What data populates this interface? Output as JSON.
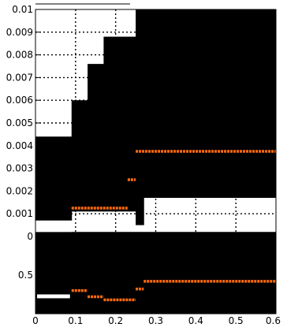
{
  "chart_data": [
    {
      "type": "line",
      "panel": "top",
      "title": "",
      "xlabel": "",
      "ylabel": "",
      "xlim": [
        0,
        0.6
      ],
      "ylim": [
        0,
        0.01
      ],
      "grid": true,
      "ytick_labels": [
        "0",
        "0.001",
        "0.002",
        "0.003",
        "0.004",
        "0.005",
        "0.006",
        "0.007",
        "0.008",
        "0.009",
        "0.01"
      ],
      "yticks": [
        0,
        0.001,
        0.002,
        0.003,
        0.004,
        0.005,
        0.006,
        0.007,
        0.008,
        0.009,
        0.01
      ],
      "xticks": [
        0,
        0.1,
        0.2,
        0.3,
        0.4,
        0.5,
        0.6
      ],
      "black_band": {
        "steps": [
          {
            "x0": 0.0,
            "x1": 0.09,
            "lower": 0.0007,
            "upper": 0.0044
          },
          {
            "x0": 0.09,
            "x1": 0.13,
            "lower": 0.0011,
            "upper": 0.006
          },
          {
            "x0": 0.13,
            "x1": 0.17,
            "lower": 0.0011,
            "upper": 0.0076
          },
          {
            "x0": 0.17,
            "x1": 0.25,
            "lower": 0.0011,
            "upper": 0.0088
          },
          {
            "x0": 0.25,
            "x1": 0.27,
            "lower": 0.0005,
            "upper": 0.01
          },
          {
            "x0": 0.27,
            "x1": 0.6,
            "lower": 0.0017,
            "upper": 0.01
          }
        ]
      },
      "orange_series": [
        {
          "x0": 0.09,
          "x1": 0.23,
          "y": 0.00125
        },
        {
          "x0": 0.23,
          "x1": 0.25,
          "y": 0.0025
        },
        {
          "x0": 0.25,
          "x1": 0.6,
          "y": 0.00375
        }
      ]
    },
    {
      "type": "line",
      "panel": "bottom",
      "title": "",
      "xlabel": "",
      "ylabel": "",
      "xlim": [
        0,
        0.6
      ],
      "ylim": [
        0,
        1
      ],
      "grid": false,
      "ytick_labels": [
        "0.5"
      ],
      "yticks": [
        0.5
      ],
      "xtick_labels": [
        "0",
        "0.1",
        "0.2",
        "0.3",
        "0.4",
        "0.5",
        "0.6"
      ],
      "xticks": [
        0,
        0.1,
        0.2,
        0.3,
        0.4,
        0.5,
        0.6
      ],
      "black_band": {
        "lower": 0.25,
        "upper": 1.0
      },
      "white_patch": {
        "x0": 0.0,
        "x1": 0.09,
        "y0": 0.2,
        "y1": 0.25
      },
      "orange_series": [
        {
          "x0": 0.09,
          "x1": 0.13,
          "y": 0.3
        },
        {
          "x0": 0.13,
          "x1": 0.17,
          "y": 0.22
        },
        {
          "x0": 0.17,
          "x1": 0.25,
          "y": 0.18
        },
        {
          "x0": 0.25,
          "x1": 0.27,
          "y": 0.32
        },
        {
          "x0": 0.27,
          "x1": 0.6,
          "y": 0.42
        }
      ]
    }
  ]
}
